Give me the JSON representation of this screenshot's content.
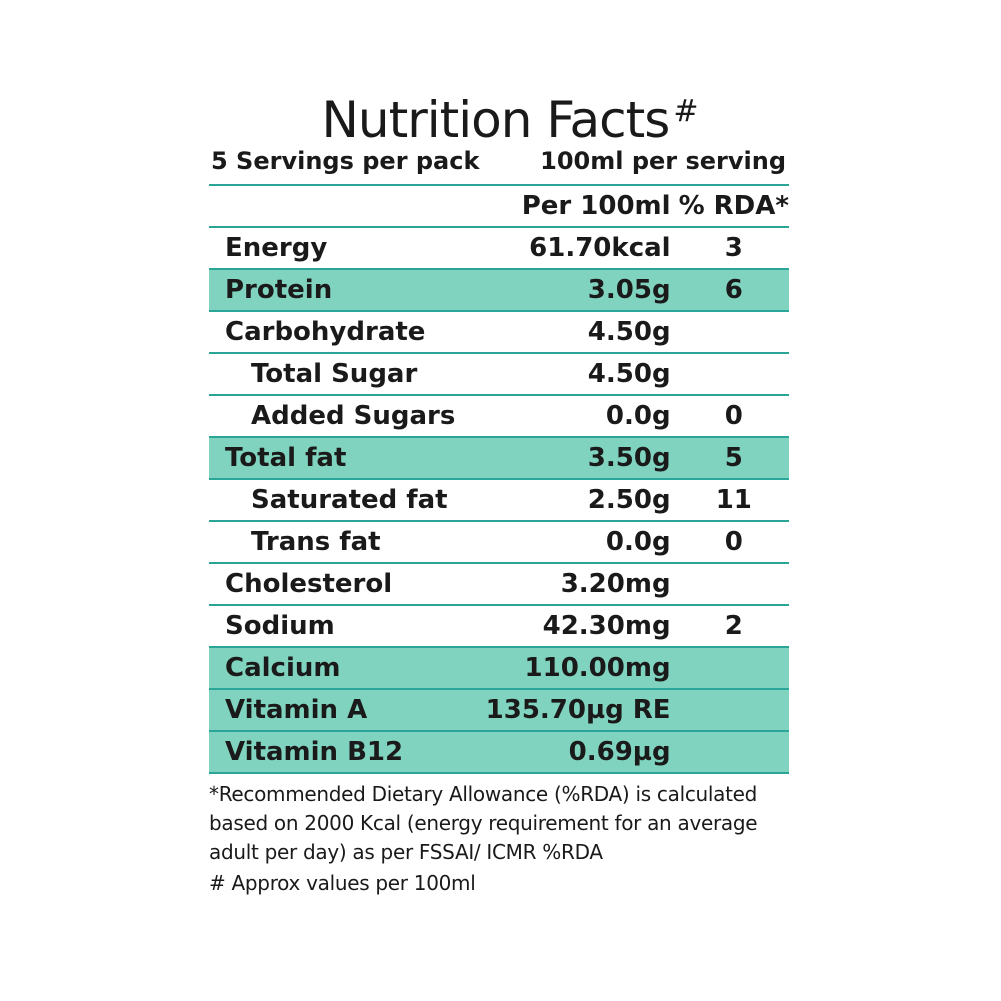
{
  "label": {
    "title": "Nutrition Facts",
    "title_mark": "#",
    "servings_per_pack": "5 Servings per pack",
    "serving_size": "100ml per serving",
    "headers": {
      "name": "",
      "per": "Per 100ml",
      "rda": "% RDA*"
    },
    "rows": [
      {
        "name": "Energy",
        "value": "61.70kcal",
        "rda": "3",
        "indent": false,
        "highlight": false
      },
      {
        "name": "Protein",
        "value": "3.05g",
        "rda": "6",
        "indent": false,
        "highlight": true
      },
      {
        "name": "Carbohydrate",
        "value": "4.50g",
        "rda": "",
        "indent": false,
        "highlight": false
      },
      {
        "name": "Total Sugar",
        "value": "4.50g",
        "rda": "",
        "indent": true,
        "highlight": false
      },
      {
        "name": "Added Sugars",
        "value": "0.0g",
        "rda": "0",
        "indent": true,
        "highlight": false
      },
      {
        "name": "Total fat",
        "value": "3.50g",
        "rda": "5",
        "indent": false,
        "highlight": true
      },
      {
        "name": "Saturated fat",
        "value": "2.50g",
        "rda": "11",
        "indent": true,
        "highlight": false
      },
      {
        "name": "Trans fat",
        "value": "0.0g",
        "rda": "0",
        "indent": true,
        "highlight": false
      },
      {
        "name": "Cholesterol",
        "value": "3.20mg",
        "rda": "",
        "indent": false,
        "highlight": false
      },
      {
        "name": "Sodium",
        "value": "42.30mg",
        "rda": "2",
        "indent": false,
        "highlight": false
      },
      {
        "name": "Calcium",
        "value": "110.00mg",
        "rda": "",
        "indent": false,
        "highlight": true
      },
      {
        "name": "Vitamin A",
        "value": "135.70µg RE",
        "rda": "",
        "indent": false,
        "highlight": true
      },
      {
        "name": "Vitamin B12",
        "value": "0.69µg",
        "rda": "",
        "indent": false,
        "highlight": true
      }
    ],
    "footnote_lines": [
      "*Recommended Dietary Allowance (%RDA) is calculated",
      "based on 2000 Kcal (energy requirement for an average",
      "adult per day) as per FSSAI/ ICMR  %RDA"
    ],
    "approx_note": "# Approx values per 100ml"
  },
  "colors": {
    "highlight": "#80d3be",
    "rule": "#2aa597",
    "text": "#1a1a1a"
  }
}
